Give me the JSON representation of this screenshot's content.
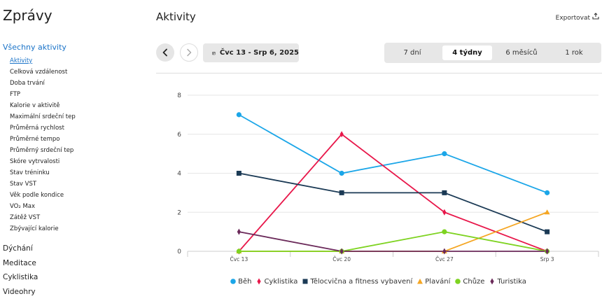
{
  "sidebar": {
    "title": "Zprávy",
    "active_section": "Všechny aktivity",
    "items": [
      "Aktivity",
      "Celková vzdálenost",
      "Doba trvání",
      "FTP",
      "Kalorie v aktivitě",
      "Maximální srdeční tep",
      "Průměrná rychlost",
      "Průměrné tempo",
      "Průměrný srdeční tep",
      "Skóre vytrvalosti",
      "Stav tréninku",
      "Stav VST",
      "Věk podle kondice",
      "VO₂ Max",
      "Zátěž VST",
      "Zbývající kalorie"
    ],
    "active_item": "Aktivity",
    "groups": [
      "Dýchání",
      "Meditace",
      "Cyklistika",
      "Videohry"
    ]
  },
  "header": {
    "title": "Aktivity",
    "export_label": "Exportovat"
  },
  "toolbar": {
    "date_range": "Čvc 13 - Srp 6, 2025",
    "ranges": [
      "7 dní",
      "4 týdny",
      "6 měsíců",
      "1 rok"
    ],
    "active_range": "4 týdny"
  },
  "chart_data": {
    "type": "line",
    "categories": [
      "Čvc 13",
      "Čvc 20",
      "Čvc 27",
      "Srp 3"
    ],
    "ylim": [
      0,
      8
    ],
    "yticks": [
      0,
      2,
      4,
      6,
      8
    ],
    "grid": true,
    "legend_position": "bottom",
    "series": [
      {
        "name": "Běh",
        "values": [
          7,
          4,
          5,
          3
        ],
        "color": "#1ba6e8",
        "marker": "circle"
      },
      {
        "name": "Cyklistika",
        "values": [
          0,
          6,
          2,
          0
        ],
        "color": "#e8174a",
        "marker": "diamond"
      },
      {
        "name": "Tělocvična a fitness vybavení",
        "values": [
          4,
          3,
          3,
          1
        ],
        "color": "#1b3a55",
        "marker": "square"
      },
      {
        "name": "Plavání",
        "values": [
          0,
          0,
          0,
          2
        ],
        "color": "#f5a623",
        "marker": "triangle"
      },
      {
        "name": "Chůze",
        "values": [
          0,
          0,
          1,
          0
        ],
        "color": "#7ed321",
        "marker": "circle"
      },
      {
        "name": "Turistika",
        "values": [
          1,
          0,
          0,
          0
        ],
        "color": "#6b2a5a",
        "marker": "diamond"
      }
    ]
  }
}
